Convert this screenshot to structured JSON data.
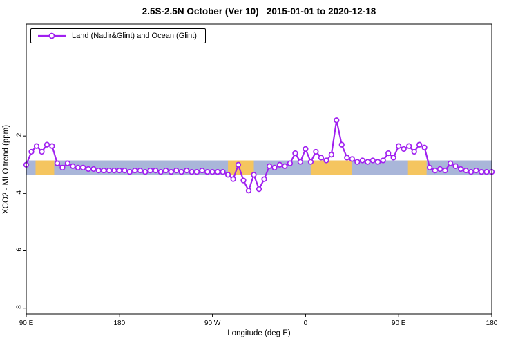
{
  "chart_data": {
    "type": "line",
    "title": "2.5S-2.5N October (Ver 10)   2015-01-01 to 2020-12-18",
    "xlabel": "Longitude (deg E)",
    "ylabel": "XCO2 - MLO trend (ppm)",
    "legend": [
      "Land (Nadir&Glint) and Ocean (Glint)"
    ],
    "legend_position": "top-left",
    "grid": false,
    "xlim": [
      90,
      540
    ],
    "ylim": [
      -8.2,
      1.9
    ],
    "xticks": {
      "values": [
        90,
        180,
        270,
        360,
        450,
        540
      ],
      "labels": [
        "90 E",
        "180",
        "90 W",
        "0",
        "90 E",
        "180"
      ]
    },
    "yticks": {
      "values": [
        -8,
        -6,
        -4,
        -2
      ],
      "labels": [
        "-8",
        "-6",
        "-4",
        "-2"
      ]
    },
    "band": {
      "description": "horizontal reference band around trend; blue = ocean glint, orange = land nadir&glint segments",
      "y_low": -3.35,
      "y_high": -2.85,
      "ocean_color": "#A9B6D9",
      "land_color": "#F5C55F",
      "land_segments": [
        [
          99,
          117
        ],
        [
          285,
          310
        ],
        [
          365,
          405
        ],
        [
          459,
          477
        ]
      ]
    },
    "series": [
      {
        "name": "Land (Nadir&Glint) and Ocean (Glint)",
        "color": "#A020F0",
        "marker": "open-circle",
        "x": [
          90,
          95,
          100,
          105,
          110,
          115,
          120,
          125,
          130,
          135,
          140,
          145,
          150,
          155,
          160,
          165,
          170,
          175,
          180,
          185,
          190,
          195,
          200,
          205,
          210,
          215,
          220,
          225,
          230,
          235,
          240,
          245,
          250,
          255,
          260,
          265,
          270,
          275,
          280,
          285,
          290,
          295,
          300,
          305,
          310,
          315,
          320,
          325,
          330,
          335,
          340,
          345,
          350,
          355,
          360,
          365,
          370,
          375,
          380,
          385,
          390,
          395,
          400,
          405,
          410,
          415,
          420,
          425,
          430,
          435,
          440,
          445,
          450,
          455,
          460,
          465,
          470,
          475,
          480,
          485,
          490,
          495,
          500,
          505,
          510,
          515,
          520,
          525,
          530,
          535,
          540
        ],
        "y": [
          -3.0,
          -2.55,
          -2.35,
          -2.55,
          -2.3,
          -2.35,
          -2.95,
          -3.1,
          -2.95,
          -3.05,
          -3.1,
          -3.1,
          -3.15,
          -3.15,
          -3.2,
          -3.2,
          -3.2,
          -3.2,
          -3.2,
          -3.2,
          -3.25,
          -3.2,
          -3.2,
          -3.25,
          -3.2,
          -3.2,
          -3.25,
          -3.2,
          -3.25,
          -3.2,
          -3.25,
          -3.2,
          -3.25,
          -3.25,
          -3.2,
          -3.25,
          -3.25,
          -3.25,
          -3.25,
          -3.35,
          -3.5,
          -3.0,
          -3.55,
          -3.9,
          -3.35,
          -3.85,
          -3.5,
          -3.05,
          -3.1,
          -3.0,
          -3.05,
          -2.95,
          -2.6,
          -2.9,
          -2.45,
          -2.9,
          -2.55,
          -2.75,
          -2.85,
          -2.65,
          -1.45,
          -2.3,
          -2.75,
          -2.8,
          -2.9,
          -2.85,
          -2.9,
          -2.85,
          -2.9,
          -2.85,
          -2.6,
          -2.75,
          -2.35,
          -2.45,
          -2.35,
          -2.55,
          -2.3,
          -2.4,
          -3.1,
          -3.2,
          -3.15,
          -3.2,
          -2.95,
          -3.05,
          -3.15,
          -3.2,
          -3.25,
          -3.2,
          -3.25,
          -3.25,
          -3.25
        ]
      }
    ]
  }
}
